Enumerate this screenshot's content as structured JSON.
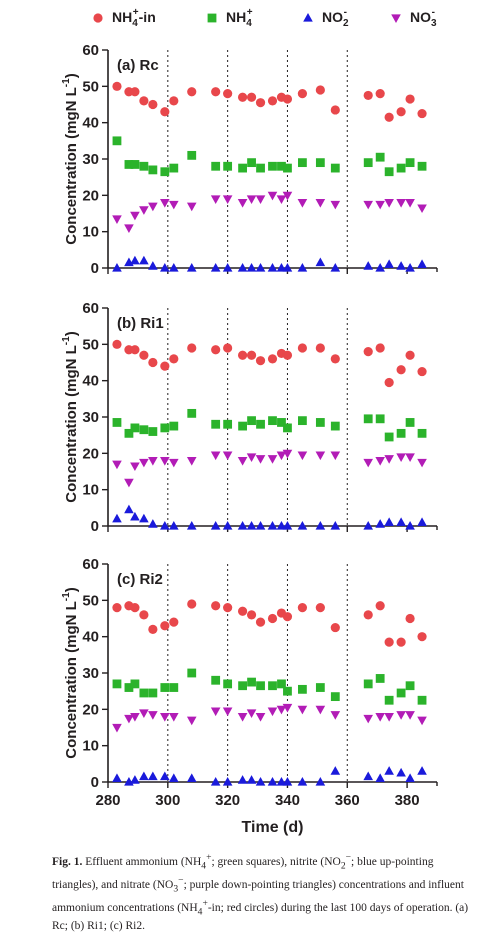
{
  "chart_data": {
    "type": "scatter",
    "legend": {
      "placement": "top",
      "items": [
        {
          "label": "NH4+-in",
          "label_html": "NH<sub>4</sub><sup>+</sup>-in",
          "color": "#e8474b",
          "marker": "circle"
        },
        {
          "label": "NH4+",
          "label_html": "NH<sub>4</sub><sup>+</sup>",
          "color": "#2bb32b",
          "marker": "square"
        },
        {
          "label": "NO2-",
          "label_html": "NO<sub>2</sub><sup>-</sup>",
          "color": "#1a1adb",
          "marker": "triangle-up"
        },
        {
          "label": "NO3-",
          "label_html": "NO<sub>3</sub><sup>-</sup>",
          "color": "#b21cb6",
          "marker": "triangle-down"
        }
      ]
    },
    "xlabel": "Time (d)",
    "ylabel": "Concentration (mgN L-1)",
    "xlim": [
      280,
      390
    ],
    "ylim": [
      0,
      60
    ],
    "xticks": [
      280,
      300,
      320,
      340,
      360,
      380
    ],
    "yticks": [
      0,
      10,
      20,
      30,
      40,
      50,
      60
    ],
    "grid": "vertical dotted",
    "panels": [
      {
        "title": "(a) Rc",
        "series": [
          {
            "name": "NH4+-in",
            "x": [
              283,
              287,
              289,
              292,
              295,
              299,
              302,
              308,
              316,
              320,
              325,
              328,
              331,
              335,
              338,
              340,
              345,
              351,
              356,
              367,
              371,
              374,
              378,
              381,
              385
            ],
            "y": [
              50,
              48.5,
              48.5,
              46,
              45,
              43,
              46,
              48.5,
              48.5,
              48,
              47,
              47,
              45.5,
              46,
              47,
              46.5,
              48,
              49,
              43.5,
              47.5,
              48,
              41.5,
              43,
              46.5,
              42.5
            ]
          },
          {
            "name": "NH4+",
            "x": [
              283,
              287,
              289,
              292,
              295,
              299,
              302,
              308,
              316,
              320,
              325,
              328,
              331,
              335,
              338,
              340,
              345,
              351,
              356,
              367,
              371,
              374,
              378,
              381,
              385
            ],
            "y": [
              35,
              28.5,
              28.5,
              28,
              27,
              26.5,
              27.5,
              31,
              28,
              28,
              27.5,
              29,
              27.5,
              28,
              28,
              27.5,
              29,
              29,
              27.5,
              29,
              30.5,
              26.5,
              27.5,
              29,
              28
            ]
          },
          {
            "name": "NO2-",
            "x": [
              283,
              287,
              289,
              292,
              295,
              299,
              302,
              308,
              316,
              320,
              325,
              328,
              331,
              335,
              338,
              340,
              345,
              351,
              356,
              367,
              371,
              374,
              378,
              381,
              385
            ],
            "y": [
              0,
              1.5,
              2,
              2,
              0.5,
              0,
              0,
              0,
              0,
              0,
              0,
              0,
              0,
              0,
              0,
              0,
              0,
              1.5,
              0,
              0.5,
              0,
              1,
              0.5,
              0,
              1
            ]
          },
          {
            "name": "NO3-",
            "x": [
              283,
              287,
              289,
              292,
              295,
              299,
              302,
              308,
              316,
              320,
              325,
              328,
              331,
              335,
              338,
              340,
              345,
              351,
              356,
              367,
              371,
              374,
              378,
              381,
              385
            ],
            "y": [
              13.5,
              11,
              14.5,
              16,
              17,
              18,
              17.5,
              17,
              19,
              19,
              18,
              19,
              19,
              20,
              19,
              20,
              18,
              18,
              17.5,
              17.5,
              17.5,
              18,
              18,
              18,
              16.5
            ]
          }
        ]
      },
      {
        "title": "(b) Ri1",
        "series": [
          {
            "name": "NH4+-in",
            "x": [
              283,
              287,
              289,
              292,
              295,
              299,
              302,
              308,
              316,
              320,
              325,
              328,
              331,
              335,
              338,
              340,
              345,
              351,
              356,
              367,
              371,
              374,
              378,
              381,
              385
            ],
            "y": [
              50,
              48.5,
              48.5,
              47,
              45,
              44,
              46,
              49,
              48.5,
              49,
              47,
              47,
              45.5,
              46,
              47.5,
              47,
              49,
              49,
              46,
              48,
              49,
              39.5,
              43,
              47,
              42.5
            ]
          },
          {
            "name": "NH4+",
            "x": [
              283,
              287,
              289,
              292,
              295,
              299,
              302,
              308,
              316,
              320,
              325,
              328,
              331,
              335,
              338,
              340,
              345,
              351,
              356,
              367,
              371,
              374,
              378,
              381,
              385
            ],
            "y": [
              28.5,
              25.5,
              27,
              26.5,
              26,
              27,
              27.5,
              31,
              28,
              28,
              27.5,
              29,
              28,
              29,
              28.5,
              27,
              29,
              28.5,
              27.5,
              29.5,
              29.5,
              24.5,
              25.5,
              28.5,
              25.5
            ]
          },
          {
            "name": "NO2-",
            "x": [
              283,
              287,
              289,
              292,
              295,
              299,
              302,
              308,
              316,
              320,
              325,
              328,
              331,
              335,
              338,
              340,
              345,
              351,
              356,
              367,
              371,
              374,
              378,
              381,
              385
            ],
            "y": [
              2,
              4.5,
              2.5,
              2,
              0.5,
              0,
              0,
              0,
              0,
              0,
              0,
              0,
              0,
              0,
              0,
              0,
              0,
              0,
              0,
              0,
              0.5,
              1,
              1,
              0,
              1
            ]
          },
          {
            "name": "NO3-",
            "x": [
              283,
              287,
              289,
              292,
              295,
              299,
              302,
              308,
              316,
              320,
              325,
              328,
              331,
              335,
              338,
              340,
              345,
              351,
              356,
              367,
              371,
              374,
              378,
              381,
              385
            ],
            "y": [
              17,
              12,
              16.5,
              17.5,
              18,
              18,
              17.5,
              18,
              19.5,
              19.5,
              18,
              19,
              18.5,
              18.5,
              19.5,
              20,
              19.5,
              19.5,
              19.5,
              17.5,
              18,
              18.5,
              19,
              19,
              17.5
            ]
          }
        ]
      },
      {
        "title": "(c) Ri2",
        "series": [
          {
            "name": "NH4+-in",
            "x": [
              283,
              287,
              289,
              292,
              295,
              299,
              302,
              308,
              316,
              320,
              325,
              328,
              331,
              335,
              338,
              340,
              345,
              351,
              356,
              367,
              371,
              374,
              378,
              381,
              385
            ],
            "y": [
              48,
              48.5,
              48,
              46,
              42,
              43,
              44,
              49,
              48.5,
              48,
              47,
              46,
              44,
              45,
              46.5,
              45.5,
              48,
              48,
              42.5,
              46,
              48.5,
              38.5,
              38.5,
              45,
              40
            ]
          },
          {
            "name": "NH4+",
            "x": [
              283,
              287,
              289,
              292,
              295,
              299,
              302,
              308,
              316,
              320,
              325,
              328,
              331,
              335,
              338,
              340,
              345,
              351,
              356,
              367,
              371,
              374,
              378,
              381,
              385
            ],
            "y": [
              27,
              26,
              27,
              24.5,
              24.5,
              26,
              26,
              30,
              28,
              27,
              26.5,
              27.5,
              26.5,
              26.5,
              27,
              25,
              25.5,
              26,
              23.5,
              27,
              28.5,
              22.5,
              24.5,
              26.5,
              22.5
            ]
          },
          {
            "name": "NO2-",
            "x": [
              283,
              287,
              289,
              292,
              295,
              299,
              302,
              308,
              316,
              320,
              325,
              328,
              331,
              335,
              338,
              340,
              345,
              351,
              356,
              367,
              371,
              374,
              378,
              381,
              385
            ],
            "y": [
              1,
              0,
              0.5,
              1.5,
              1.5,
              1.5,
              1,
              1,
              0,
              0,
              0.5,
              0.5,
              0,
              0,
              0,
              0,
              0,
              0,
              3,
              1.5,
              1,
              3,
              2.5,
              1,
              3
            ]
          },
          {
            "name": "NO3-",
            "x": [
              283,
              287,
              289,
              292,
              295,
              299,
              302,
              308,
              316,
              320,
              325,
              328,
              331,
              335,
              338,
              340,
              345,
              351,
              356,
              367,
              371,
              374,
              378,
              381,
              385
            ],
            "y": [
              15,
              17.5,
              18,
              19,
              18.5,
              18,
              18,
              17,
              19.5,
              19.5,
              18,
              19,
              18,
              19.5,
              20,
              20.5,
              20,
              20,
              18.5,
              17.5,
              18,
              18,
              18.5,
              18.5,
              17
            ]
          }
        ]
      }
    ]
  },
  "caption": {
    "label": "Fig. 1.",
    "text_html": "Effluent ammonium (NH<sub>4</sub><sup>+</sup>; green squares), nitrite (NO<sub>2</sub><sup>−</sup>; blue up-pointing triangles), and nitrate (NO<sub>3</sub><sup>−</sup>; purple down-pointing triangles) concentrations and influent ammonium concentrations (NH<sub>4</sub><sup>+</sup>-in; red circles) during the last 100 days of operation. (a) Rc; (b) Ri1; (c) Ri2."
  }
}
